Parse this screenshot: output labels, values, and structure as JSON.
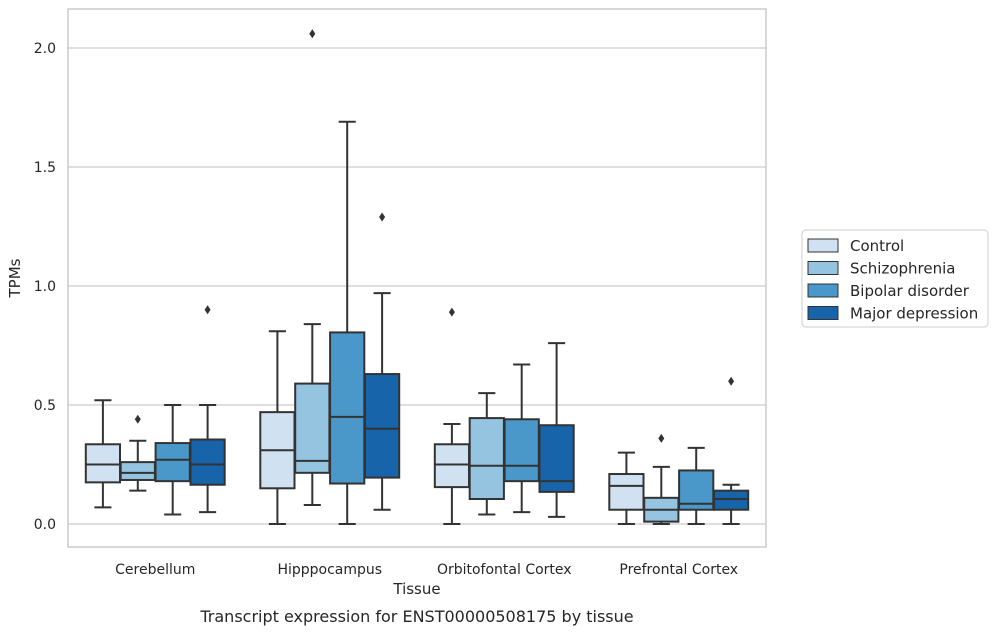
{
  "chart_data": {
    "type": "box",
    "xlabel": "Tissue",
    "ylabel": "TPMs",
    "caption": "Transcript expression for ENST00000508175 by tissue",
    "ylim": [
      -0.1,
      2.17
    ],
    "yticks": [
      0.0,
      0.5,
      1.0,
      1.5,
      2.0
    ],
    "ytick_labels": [
      "0.0",
      "0.5",
      "1.0",
      "1.5",
      "2.0"
    ],
    "grid": "horizontal",
    "legend_position": "right",
    "categories": [
      "Cerebellum",
      "Hipppocampus",
      "Orbitofontal Cortex",
      "Prefrontal Cortex"
    ],
    "series": [
      {
        "name": "Control",
        "color": "#d0e1f2",
        "boxes": [
          {
            "whislo": 0.07,
            "q1": 0.175,
            "med": 0.25,
            "q3": 0.335,
            "whishi": 0.52,
            "fliers": []
          },
          {
            "whislo": 0.0,
            "q1": 0.15,
            "med": 0.31,
            "q3": 0.47,
            "whishi": 0.81,
            "fliers": []
          },
          {
            "whislo": 0.0,
            "q1": 0.155,
            "med": 0.25,
            "q3": 0.335,
            "whishi": 0.42,
            "fliers": [
              0.89
            ]
          },
          {
            "whislo": 0.0,
            "q1": 0.06,
            "med": 0.16,
            "q3": 0.21,
            "whishi": 0.3,
            "fliers": []
          }
        ]
      },
      {
        "name": "Schizophrenia",
        "color": "#94c4df",
        "boxes": [
          {
            "whislo": 0.14,
            "q1": 0.185,
            "med": 0.215,
            "q3": 0.26,
            "whishi": 0.35,
            "fliers": [
              0.44
            ]
          },
          {
            "whislo": 0.08,
            "q1": 0.215,
            "med": 0.265,
            "q3": 0.59,
            "whishi": 0.84,
            "fliers": [
              2.06
            ]
          },
          {
            "whislo": 0.04,
            "q1": 0.105,
            "med": 0.245,
            "q3": 0.445,
            "whishi": 0.55,
            "fliers": []
          },
          {
            "whislo": 0.0,
            "q1": 0.01,
            "med": 0.06,
            "q3": 0.11,
            "whishi": 0.24,
            "fliers": [
              0.36
            ]
          }
        ]
      },
      {
        "name": "Bipolar disorder",
        "color": "#4a98c9",
        "boxes": [
          {
            "whislo": 0.04,
            "q1": 0.18,
            "med": 0.27,
            "q3": 0.34,
            "whishi": 0.5,
            "fliers": []
          },
          {
            "whislo": 0.0,
            "q1": 0.17,
            "med": 0.45,
            "q3": 0.805,
            "whishi": 1.69,
            "fliers": []
          },
          {
            "whislo": 0.05,
            "q1": 0.18,
            "med": 0.245,
            "q3": 0.44,
            "whishi": 0.67,
            "fliers": []
          },
          {
            "whislo": 0.0,
            "q1": 0.06,
            "med": 0.085,
            "q3": 0.225,
            "whishi": 0.32,
            "fliers": []
          }
        ]
      },
      {
        "name": "Major depression",
        "color": "#1764ab",
        "boxes": [
          {
            "whislo": 0.05,
            "q1": 0.165,
            "med": 0.25,
            "q3": 0.355,
            "whishi": 0.5,
            "fliers": [
              0.9
            ]
          },
          {
            "whislo": 0.06,
            "q1": 0.195,
            "med": 0.4,
            "q3": 0.63,
            "whishi": 0.97,
            "fliers": [
              1.29
            ]
          },
          {
            "whislo": 0.03,
            "q1": 0.135,
            "med": 0.18,
            "q3": 0.415,
            "whishi": 0.76,
            "fliers": []
          },
          {
            "whislo": 0.0,
            "q1": 0.06,
            "med": 0.105,
            "q3": 0.14,
            "whishi": 0.165,
            "fliers": [
              0.6
            ]
          }
        ]
      }
    ]
  }
}
